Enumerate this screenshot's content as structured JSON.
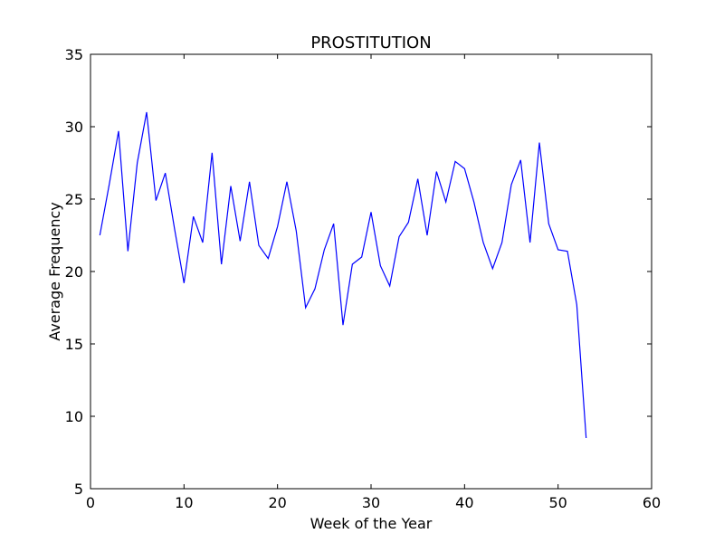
{
  "chart_data": {
    "type": "line",
    "title": "PROSTITUTION",
    "xlabel": "Week of the Year",
    "ylabel": "Average Frequency",
    "xlim": [
      0,
      60
    ],
    "ylim": [
      5,
      35
    ],
    "xticks": [
      0,
      10,
      20,
      30,
      40,
      50,
      60
    ],
    "yticks": [
      5,
      10,
      15,
      20,
      25,
      30,
      35
    ],
    "grid": false,
    "series": [
      {
        "color": "#0000ff",
        "x": [
          1,
          2,
          3,
          4,
          5,
          6,
          7,
          8,
          9,
          10,
          11,
          12,
          13,
          14,
          15,
          16,
          17,
          18,
          19,
          20,
          21,
          22,
          23,
          24,
          25,
          26,
          27,
          28,
          29,
          30,
          31,
          32,
          33,
          34,
          35,
          36,
          37,
          38,
          39,
          40,
          41,
          42,
          43,
          44,
          45,
          46,
          47,
          48,
          49,
          50,
          51,
          52,
          53
        ],
        "y": [
          22.5,
          26.0,
          29.7,
          21.4,
          27.5,
          31.0,
          24.9,
          26.8,
          22.9,
          19.2,
          23.8,
          22.0,
          28.2,
          20.5,
          25.9,
          22.1,
          26.2,
          21.8,
          20.9,
          23.1,
          26.2,
          22.8,
          17.5,
          18.8,
          21.5,
          23.3,
          16.3,
          20.5,
          21.0,
          24.1,
          20.4,
          19.0,
          22.4,
          23.4,
          26.4,
          22.5,
          26.9,
          24.8,
          27.6,
          27.1,
          24.8,
          22.0,
          20.2,
          22.0,
          26.0,
          27.7,
          22.0,
          28.9,
          23.3,
          21.5,
          21.4,
          17.7,
          8.5
        ]
      }
    ]
  }
}
